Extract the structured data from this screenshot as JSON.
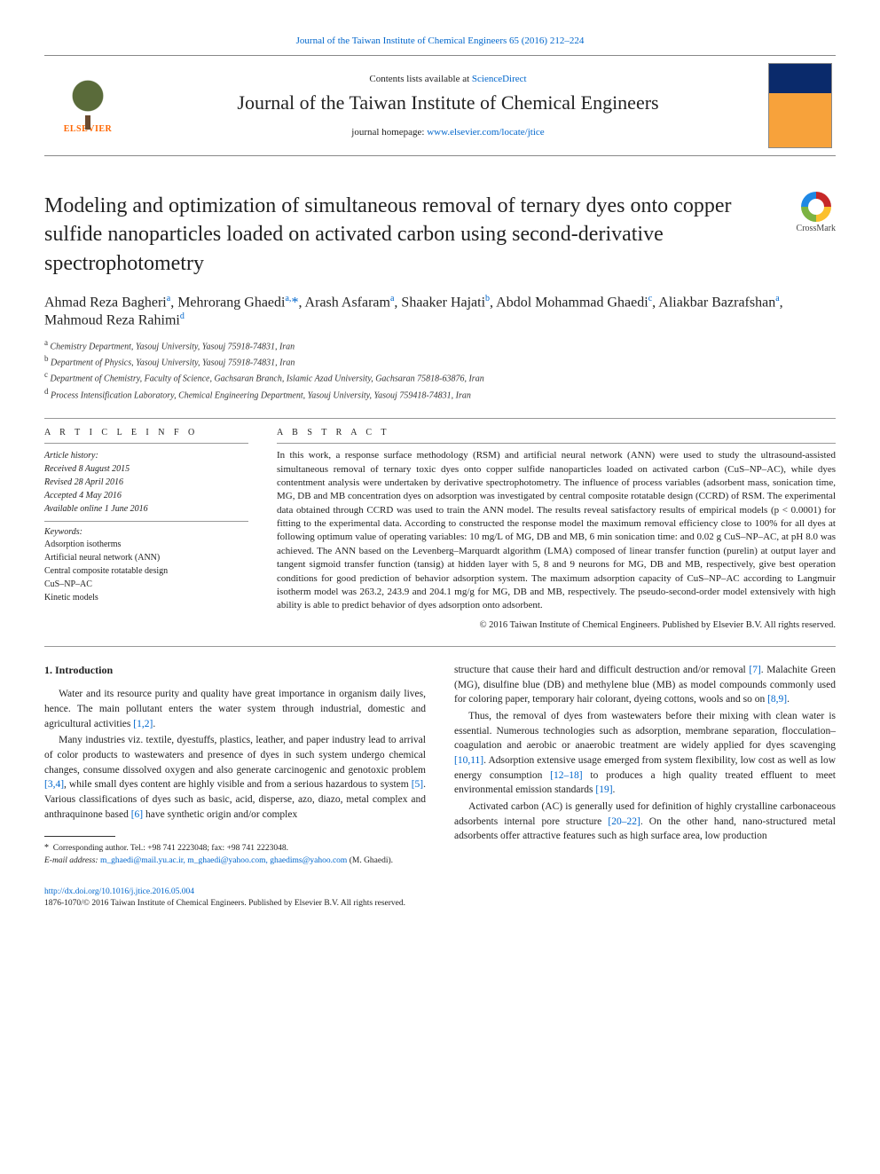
{
  "header": {
    "journal_ref_line": "Journal of the Taiwan Institute of Chemical Engineers 65 (2016) 212–224",
    "contents_prefix": "Contents lists available at ",
    "contents_link": "ScienceDirect",
    "journal_name": "Journal of the Taiwan Institute of Chemical Engineers",
    "homepage_prefix": "journal homepage: ",
    "homepage_link": "www.elsevier.com/locate/jtice",
    "publisher_logo_text": "ELSEVIER"
  },
  "title": "Modeling and optimization of simultaneous removal of ternary dyes onto copper sulfide nanoparticles loaded on activated carbon using second-derivative spectrophotometry",
  "crossmark_label": "CrossMark",
  "authors_html": "Ahmad Reza Bagheri<sup>a</sup>, Mehrorang Ghaedi<sup>a,</sup><span class='star'>*</span>, Arash Asfaram<sup>a</sup>, Shaaker Hajati<sup>b</sup>, Abdol Mohammad Ghaedi<sup>c</sup>, Aliakbar Bazrafshan<sup>a</sup>, Mahmoud Reza Rahimi<sup>d</sup>",
  "affiliations": [
    {
      "sup": "a",
      "text": "Chemistry Department, Yasouj University, Yasouj 75918-74831, Iran"
    },
    {
      "sup": "b",
      "text": "Department of Physics, Yasouj University, Yasouj 75918-74831, Iran"
    },
    {
      "sup": "c",
      "text": "Department of Chemistry, Faculty of Science, Gachsaran Branch, Islamic Azad University, Gachsaran 75818-63876, Iran"
    },
    {
      "sup": "d",
      "text": "Process Intensification Laboratory, Chemical Engineering Department, Yasouj University, Yasouj 759418-74831, Iran"
    }
  ],
  "article_info": {
    "heading": "a r t i c l e   i n f o",
    "history_label": "Article history:",
    "history": [
      "Received 8 August 2015",
      "Revised 28 April 2016",
      "Accepted 4 May 2016",
      "Available online 1 June 2016"
    ],
    "keywords_label": "Keywords:",
    "keywords": [
      "Adsorption isotherms",
      "Artificial neural network (ANN)",
      "Central composite rotatable design",
      "CuS–NP–AC",
      "Kinetic models"
    ]
  },
  "abstract": {
    "heading": "a b s t r a c t",
    "text": "In this work, a response surface methodology (RSM) and artificial neural network (ANN) were used to study the ultrasound-assisted simultaneous removal of ternary toxic dyes onto copper sulfide nanoparticles loaded on activated carbon (CuS–NP–AC), while dyes contentment analysis were undertaken by derivative spectrophotometry. The influence of process variables (adsorbent mass, sonication time, MG, DB and MB concentration dyes on adsorption was investigated by central composite rotatable design (CCRD) of RSM. The experimental data obtained through CCRD was used to train the ANN model. The results reveal satisfactory results of empirical models (p < 0.0001) for fitting to the experimental data. According to constructed the response model the maximum removal efficiency close to 100% for all dyes at following optimum value of operating variables: 10 mg/L of MG, DB and MB, 6 min sonication time: and 0.02 g CuS–NP–AC, at pH 8.0 was achieved. The ANN based on the Levenberg–Marquardt algorithm (LMA) composed of linear transfer function (purelin) at output layer and tangent sigmoid transfer function (tansig) at hidden layer with 5, 8 and 9 neurons for MG, DB and MB, respectively, give best operation conditions for good prediction of behavior adsorption system. The maximum adsorption capacity of CuS–NP–AC according to Langmuir isotherm model was 263.2, 243.9 and 204.1 mg/g for MG, DB and MB, respectively. The pseudo-second-order model extensively with high ability is able to predict behavior of dyes adsorption onto adsorbent.",
    "copyright": "© 2016 Taiwan Institute of Chemical Engineers. Published by Elsevier B.V. All rights reserved."
  },
  "body": {
    "section_heading": "1. Introduction",
    "col1": {
      "p1": "Water and its resource purity and quality have great importance in organism daily lives, hence. The main pollutant enters the water system through industrial, domestic and agricultural activities ",
      "p1_ref": "[1,2]",
      "p1_tail": ".",
      "p2a": "Many industries viz. textile, dyestuffs, plastics, leather, and paper industry lead to arrival of color products to wastewaters and presence of dyes in such system undergo chemical changes, consume dissolved oxygen and also generate carcinogenic and genotoxic problem ",
      "p2_ref1": "[3,4]",
      "p2b": ", while small dyes content are highly visible and from a serious hazardous to system ",
      "p2_ref2": "[5]",
      "p2c": ". Various classifications of dyes such as basic, acid, disperse, azo, diazo, metal complex and anthraquinone based ",
      "p2_ref3": "[6]",
      "p2d": " have synthetic origin and/or complex"
    },
    "col2": {
      "p1a": "structure that cause their hard and difficult destruction and/or removal ",
      "p1_ref1": "[7]",
      "p1b": ". Malachite Green (MG), disulfine blue (DB) and methylene blue (MB) as model compounds commonly used for coloring paper, temporary hair colorant, dyeing cottons, wools and so on ",
      "p1_ref2": "[8,9]",
      "p1c": ".",
      "p2a": "Thus, the removal of dyes from wastewaters before their mixing with clean water is essential. Numerous technologies such as adsorption, membrane separation, flocculation–coagulation and aerobic or anaerobic treatment are widely applied for dyes scavenging ",
      "p2_ref1": "[10,11]",
      "p2b": ". Adsorption extensive usage emerged from system flexibility, low cost as well as low energy consumption ",
      "p2_ref2": "[12–18]",
      "p2c": " to produces a high quality treated effluent to meet environmental emission standards ",
      "p2_ref3": "[19]",
      "p2d": ".",
      "p3a": "Activated carbon (AC) is generally used for definition of highly crystalline carbonaceous adsorbents internal pore structure ",
      "p3_ref1": "[20–22]",
      "p3b": ". On the other hand, nano-structured metal adsorbents offer attractive features such as high surface area, low production"
    }
  },
  "footnotes": {
    "corr": "Corresponding author. Tel.: +98 741 2223048; fax: +98 741 2223048.",
    "email_label": "E-mail address: ",
    "emails": "m_ghaedi@mail.yu.ac.ir, m_ghaedi@yahoo.com, ghaedims@yahoo.com",
    "email_person": " (M. Ghaedi)."
  },
  "bottom": {
    "doi": "http://dx.doi.org/10.1016/j.jtice.2016.05.004",
    "issn_line": "1876-1070/© 2016 Taiwan Institute of Chemical Engineers. Published by Elsevier B.V. All rights reserved."
  },
  "colors": {
    "link": "#0066cc",
    "text": "#222222",
    "rule": "#999999",
    "elsevier_orange": "#ff6600"
  }
}
